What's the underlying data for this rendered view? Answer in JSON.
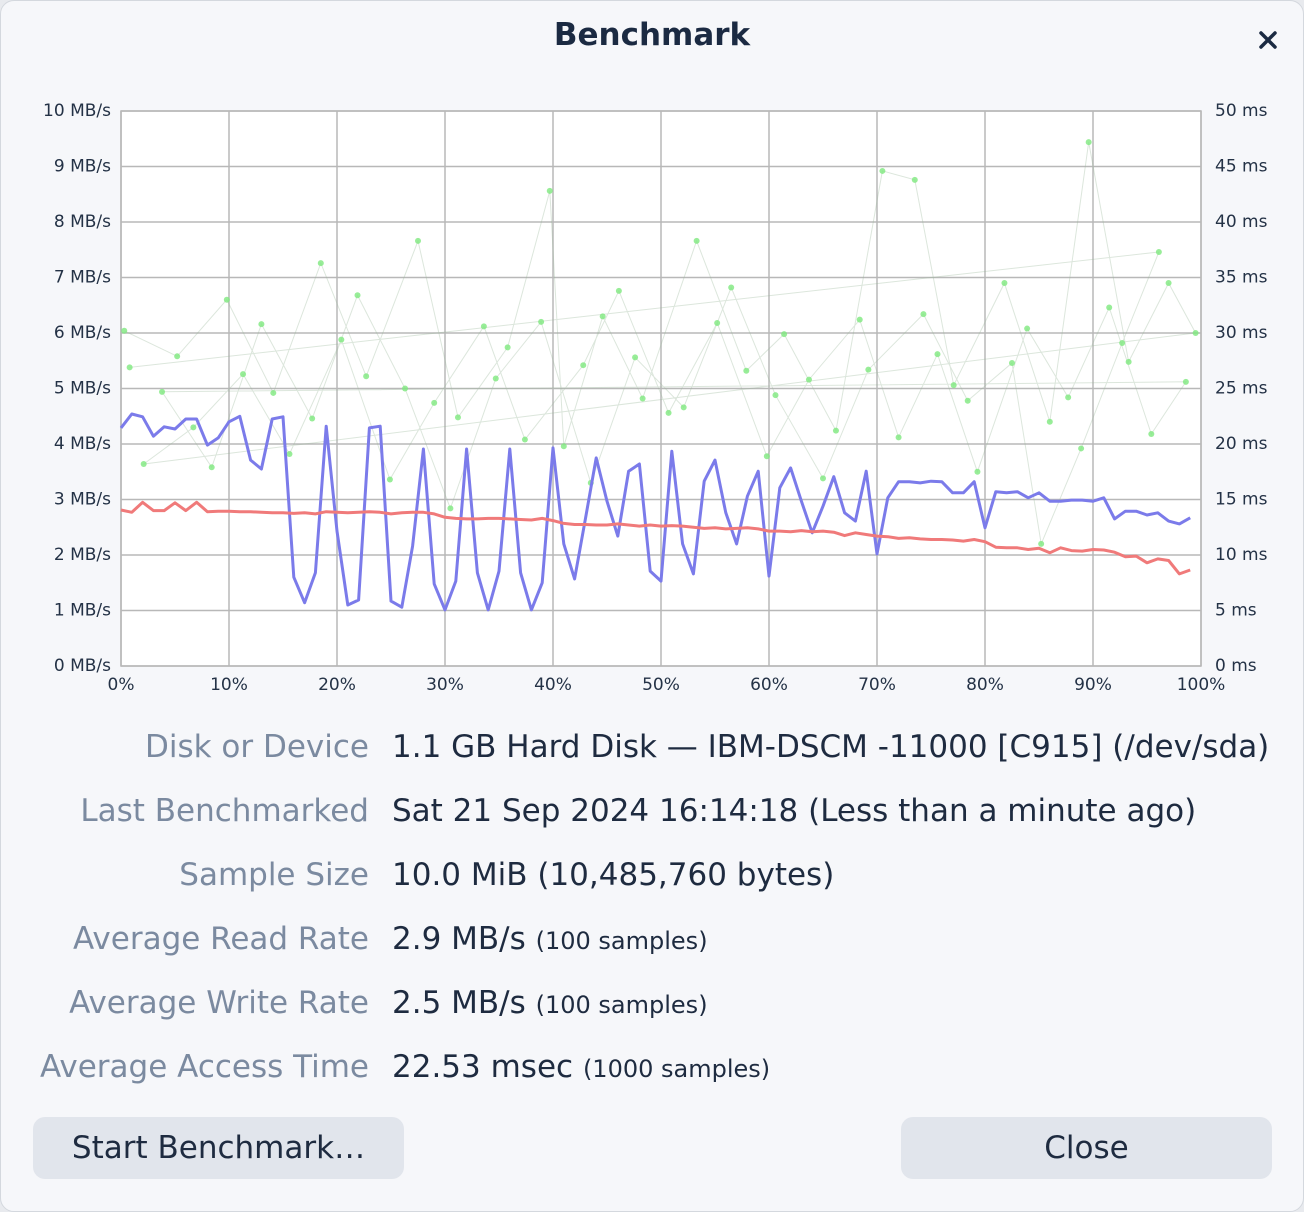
{
  "header": {
    "title": "Benchmark"
  },
  "chart_data": [
    {
      "type": "line",
      "x": [
        0,
        1,
        2,
        3,
        4,
        5,
        6,
        7,
        8,
        9,
        10,
        11,
        12,
        13,
        14,
        15,
        16,
        17,
        18,
        19,
        20,
        21,
        22,
        23,
        24,
        25,
        26,
        27,
        28,
        29,
        30,
        31,
        32,
        33,
        34,
        35,
        36,
        37,
        38,
        39,
        40,
        41,
        42,
        43,
        44,
        45,
        46,
        47,
        48,
        49,
        50,
        51,
        52,
        53,
        54,
        55,
        56,
        57,
        58,
        59,
        60,
        61,
        62,
        63,
        64,
        65,
        66,
        67,
        68,
        69,
        70,
        71,
        72,
        73,
        74,
        75,
        76,
        77,
        78,
        79,
        80,
        81,
        82,
        83,
        84,
        85,
        86,
        87,
        88,
        89,
        90,
        91,
        92,
        93,
        94,
        95,
        96,
        97,
        98,
        99
      ],
      "series": [
        {
          "color": "#7b7bea",
          "values": [
            4.29,
            4.54,
            4.49,
            4.14,
            4.31,
            4.27,
            4.45,
            4.45,
            3.98,
            4.11,
            4.4,
            4.5,
            3.71,
            3.55,
            4.45,
            4.49,
            1.6,
            1.14,
            1.68,
            4.32,
            2.43,
            1.1,
            1.19,
            4.29,
            4.32,
            1.17,
            1.06,
            2.16,
            3.91,
            1.48,
            1.01,
            1.53,
            3.91,
            1.68,
            1.01,
            1.71,
            3.91,
            1.68,
            1.01,
            1.5,
            3.93,
            2.2,
            1.57,
            2.65,
            3.75,
            2.97,
            2.34,
            3.51,
            3.64,
            1.71,
            1.53,
            3.87,
            2.2,
            1.66,
            3.33,
            3.71,
            2.76,
            2.2,
            3.06,
            3.51,
            1.62,
            3.21,
            3.57,
            2.97,
            2.4,
            2.88,
            3.41,
            2.76,
            2.61,
            3.51,
            2.02,
            3.03,
            3.32,
            3.32,
            3.3,
            3.33,
            3.32,
            3.12,
            3.12,
            3.32,
            2.49,
            3.14,
            3.12,
            3.14,
            3.03,
            3.12,
            2.97,
            2.97,
            2.99,
            2.99,
            2.97,
            3.03,
            2.65,
            2.79,
            2.79,
            2.72,
            2.76,
            2.61,
            2.56,
            2.67
          ]
        },
        {
          "color": "#f07a7a",
          "values": [
            2.81,
            2.77,
            2.95,
            2.8,
            2.8,
            2.94,
            2.8,
            2.95,
            2.78,
            2.79,
            2.79,
            2.78,
            2.78,
            2.77,
            2.76,
            2.76,
            2.75,
            2.76,
            2.74,
            2.78,
            2.77,
            2.76,
            2.77,
            2.78,
            2.77,
            2.74,
            2.76,
            2.77,
            2.77,
            2.74,
            2.68,
            2.66,
            2.65,
            2.65,
            2.66,
            2.66,
            2.65,
            2.64,
            2.63,
            2.66,
            2.62,
            2.57,
            2.55,
            2.55,
            2.54,
            2.54,
            2.56,
            2.54,
            2.52,
            2.54,
            2.52,
            2.53,
            2.52,
            2.5,
            2.48,
            2.49,
            2.47,
            2.48,
            2.49,
            2.47,
            2.43,
            2.43,
            2.42,
            2.44,
            2.42,
            2.43,
            2.41,
            2.35,
            2.4,
            2.37,
            2.34,
            2.33,
            2.3,
            2.31,
            2.29,
            2.28,
            2.28,
            2.27,
            2.25,
            2.28,
            2.24,
            2.14,
            2.13,
            2.13,
            2.1,
            2.12,
            2.04,
            2.13,
            2.08,
            2.07,
            2.1,
            2.09,
            2.05,
            1.97,
            1.98,
            1.86,
            1.93,
            1.9,
            1.66,
            1.73
          ]
        }
      ],
      "xlim": [
        0,
        100
      ],
      "xticks": [
        {
          "value": 0,
          "label": "0%"
        },
        {
          "value": 10,
          "label": "10%"
        },
        {
          "value": 20,
          "label": "20%"
        },
        {
          "value": 30,
          "label": "30%"
        },
        {
          "value": 40,
          "label": "40%"
        },
        {
          "value": 50,
          "label": "50%"
        },
        {
          "value": 60,
          "label": "60%"
        },
        {
          "value": 70,
          "label": "70%"
        },
        {
          "value": 80,
          "label": "80%"
        },
        {
          "value": 90,
          "label": "90%"
        },
        {
          "value": 100,
          "label": "100%"
        }
      ],
      "ylim": [
        0,
        10
      ],
      "yticks": [
        {
          "value": 0,
          "label": "0 MB/s"
        },
        {
          "value": 1,
          "label": "1 MB/s"
        },
        {
          "value": 2,
          "label": "2 MB/s"
        },
        {
          "value": 3,
          "label": "3 MB/s"
        },
        {
          "value": 4,
          "label": "4 MB/s"
        },
        {
          "value": 5,
          "label": "5 MB/s"
        },
        {
          "value": 6,
          "label": "6 MB/s"
        },
        {
          "value": 7,
          "label": "7 MB/s"
        },
        {
          "value": 8,
          "label": "8 MB/s"
        },
        {
          "value": 9,
          "label": "9 MB/s"
        },
        {
          "value": 10,
          "label": "10 MB/s"
        }
      ],
      "y2lim": [
        0,
        50
      ],
      "y2ticks": [
        {
          "value": 0,
          "label": "0 ms"
        },
        {
          "value": 5,
          "label": "5 ms"
        },
        {
          "value": 10,
          "label": "10 ms"
        },
        {
          "value": 15,
          "label": "15 ms"
        },
        {
          "value": 20,
          "label": "20 ms"
        },
        {
          "value": 25,
          "label": "25 ms"
        },
        {
          "value": 30,
          "label": "30 ms"
        },
        {
          "value": 35,
          "label": "35 ms"
        },
        {
          "value": 40,
          "label": "40 ms"
        },
        {
          "value": 45,
          "label": "45 ms"
        },
        {
          "value": 50,
          "label": "50 ms"
        }
      ],
      "grid": true
    },
    {
      "type": "scatter",
      "axis": "y2",
      "color": "#7ee87e",
      "x": [
        0.3,
        5.2,
        9.8,
        14.1,
        18.5,
        22.7,
        27.5,
        31.2,
        35.8,
        39.7,
        41.0,
        44.6,
        48.3,
        53.3,
        57.9,
        61.4,
        66.2,
        70.5,
        73.5,
        77.1,
        81.8,
        86.0,
        89.6,
        93.3,
        97.0,
        99.5,
        2.1,
        6.7,
        11.3,
        15.6,
        20.4,
        24.9,
        29.0,
        33.6,
        37.4,
        42.8,
        46.1,
        50.7,
        55.2,
        59.8,
        63.7,
        68.4,
        72.0,
        75.6,
        79.3,
        83.9,
        87.7,
        91.5,
        95.4,
        98.6,
        3.8,
        8.4,
        13.0,
        17.7,
        21.9,
        26.3,
        30.5,
        34.7,
        38.9,
        43.5,
        47.6,
        52.1,
        56.5,
        60.6,
        65.0,
        69.2,
        74.3,
        78.4,
        82.5,
        85.2,
        88.9,
        92.7,
        96.1,
        0.8
      ],
      "values": [
        30.2,
        27.9,
        33.0,
        24.6,
        36.3,
        26.1,
        38.3,
        22.4,
        28.7,
        42.8,
        19.8,
        31.5,
        24.1,
        38.3,
        26.6,
        29.9,
        21.2,
        44.6,
        43.8,
        25.3,
        34.5,
        22.0,
        47.2,
        27.4,
        34.5,
        30.0,
        18.2,
        21.5,
        26.3,
        19.1,
        29.4,
        16.8,
        23.7,
        30.6,
        20.4,
        27.1,
        33.8,
        22.8,
        30.9,
        18.9,
        25.8,
        31.2,
        20.6,
        28.1,
        17.5,
        30.4,
        24.2,
        32.3,
        20.9,
        25.6,
        24.7,
        17.9,
        30.8,
        22.3,
        33.4,
        25.0,
        14.2,
        25.9,
        31.0,
        16.5,
        27.8,
        23.3,
        34.1,
        24.4,
        16.9,
        26.7,
        31.7,
        23.9,
        27.3,
        11.0,
        19.6,
        29.1,
        37.3,
        26.9
      ]
    }
  ],
  "info": {
    "rows": [
      {
        "label": "Disk or Device",
        "value": "1.1 GB Hard Disk — IBM-DSCM -11000 [C915] (/dev/sda)"
      },
      {
        "label": "Last Benchmarked",
        "value": "Sat 21 Sep 2024 16:14:18 (Less than a minute ago)"
      },
      {
        "label": "Sample Size",
        "value": "10.0 MiB (10,485,760 bytes)"
      },
      {
        "label": "Average Read Rate",
        "value": "2.9 MB/s",
        "note": "(100 samples)"
      },
      {
        "label": "Average Write Rate",
        "value": "2.5 MB/s",
        "note": "(100 samples)"
      },
      {
        "label": "Average Access Time",
        "value": "22.53 msec",
        "note": "(1000 samples)"
      }
    ]
  },
  "buttons": {
    "start": "Start Benchmark…",
    "close": "Close"
  }
}
